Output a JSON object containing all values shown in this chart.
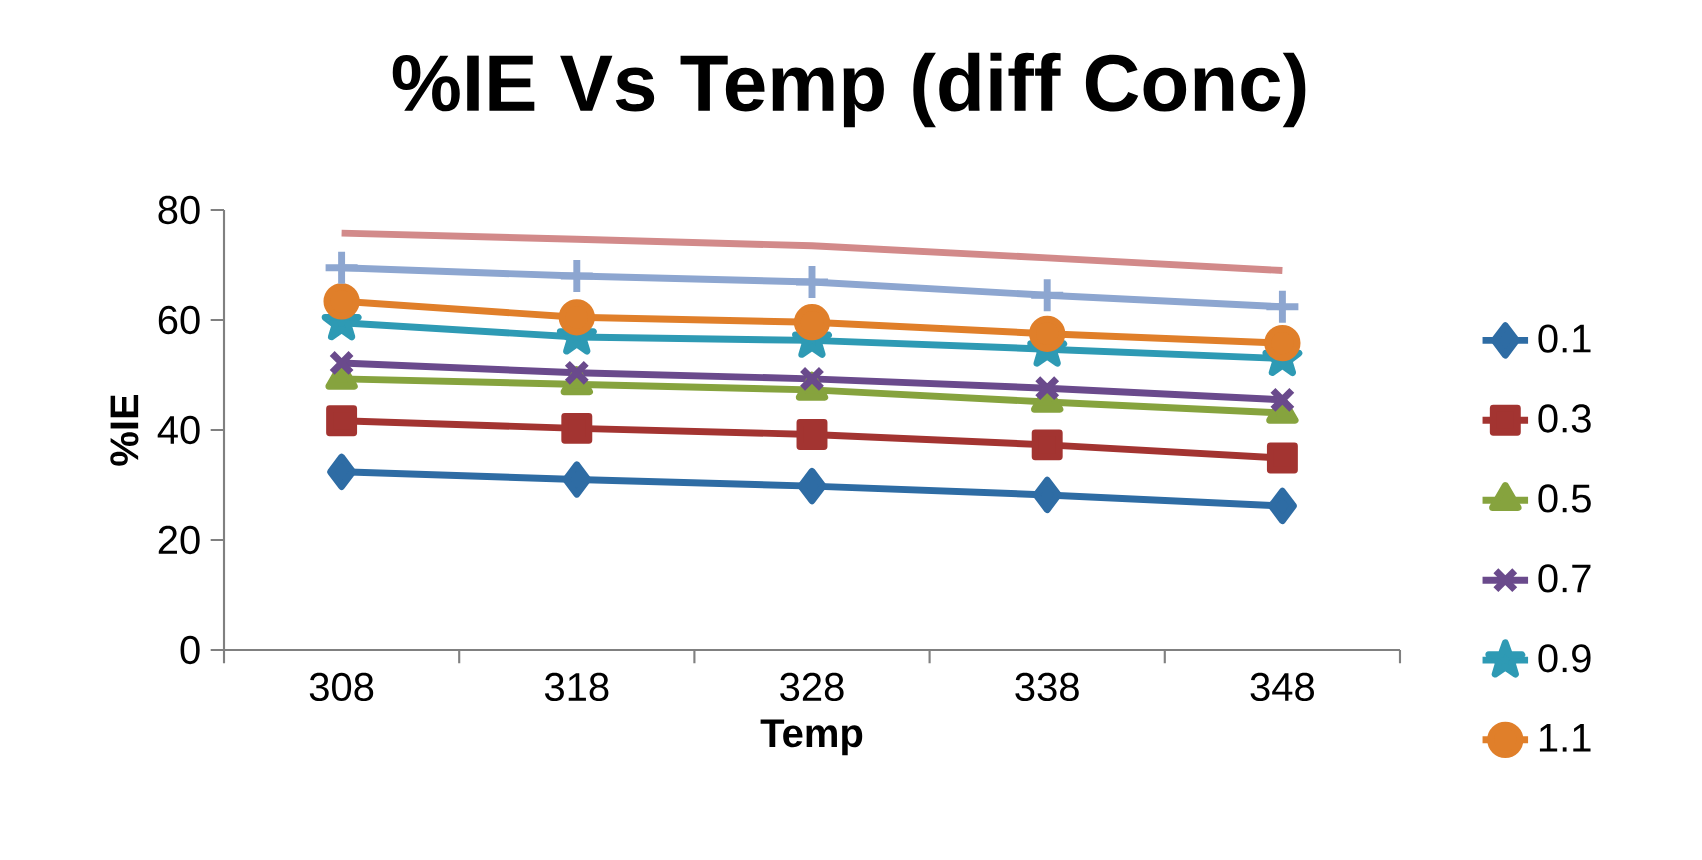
{
  "chart_data": {
    "type": "line",
    "title": "%IE Vs Temp (diff Conc)",
    "xlabel": "Temp",
    "ylabel": "%IE",
    "categories": [
      "308",
      "318",
      "328",
      "338",
      "348"
    ],
    "ylim": [
      0,
      80
    ],
    "yticks": [
      0,
      20,
      40,
      60,
      80
    ],
    "legend": "right",
    "series": [
      {
        "name": "0.1",
        "color": "#2e6ca4",
        "marker": "diamond",
        "values": [
          32.4,
          31.0,
          29.8,
          28.2,
          26.2
        ]
      },
      {
        "name": "0.3",
        "color": "#a33431",
        "marker": "square",
        "values": [
          41.7,
          40.3,
          39.2,
          37.3,
          34.9
        ]
      },
      {
        "name": "0.5",
        "color": "#86a33e",
        "marker": "triangle",
        "values": [
          49.3,
          48.3,
          47.3,
          45.1,
          43.1
        ]
      },
      {
        "name": "0.7",
        "color": "#6a4a8c",
        "marker": "cross",
        "values": [
          52.2,
          50.4,
          49.3,
          47.6,
          45.5
        ]
      },
      {
        "name": "0.9",
        "color": "#2e9ab4",
        "marker": "star",
        "values": [
          59.5,
          56.9,
          56.3,
          54.7,
          53.0
        ]
      },
      {
        "name": "1.1",
        "color": "#e07f2a",
        "marker": "circle",
        "values": [
          63.4,
          60.5,
          59.6,
          57.5,
          55.8
        ]
      },
      {
        "color": "#8da6d0",
        "marker": "plus",
        "values": [
          69.5,
          68.0,
          66.9,
          64.5,
          62.4
        ]
      },
      {
        "color": "#d28a8a",
        "marker": "none",
        "values": [
          75.8,
          74.7,
          73.5,
          71.3,
          69.0
        ]
      }
    ]
  }
}
